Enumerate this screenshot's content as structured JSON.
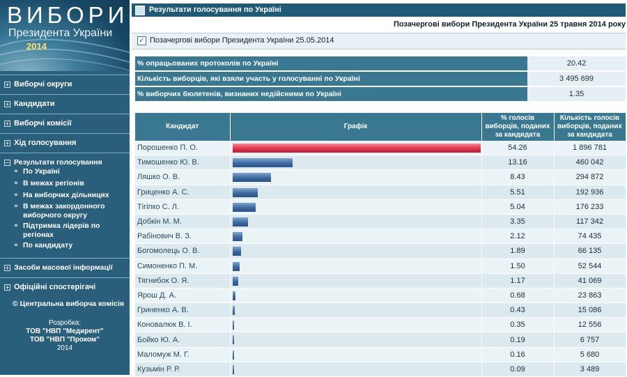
{
  "banner": {
    "big": "ВИБОРИ",
    "middle": "Президента України",
    "year": "2014"
  },
  "sidebar": {
    "items": [
      {
        "label": "Виборчі округи",
        "box": "+"
      },
      {
        "label": "Кандидати",
        "box": "+"
      },
      {
        "label": "Виборчі комісії",
        "box": "+"
      },
      {
        "label": "Хід голосування",
        "box": "+"
      },
      {
        "label": "Результати голосування",
        "box": "−"
      },
      {
        "label": "Засоби масової інформації",
        "box": "+"
      },
      {
        "label": "Офіційні спостерігачі",
        "box": "+"
      }
    ],
    "subitems": [
      "По Україні",
      "В межах регіонів",
      "На виборчих дільницях",
      "В межах закордонного виборчого округу",
      "Підтримка лідерів по регіонах",
      "По кандидату"
    ],
    "copyright": "© Центральна виборча комісія",
    "credits": {
      "title": "Розробка:",
      "line1": "ТОВ \"НВП \"Медирент\"",
      "line2": "ТОВ \"НВП \"Проком\"",
      "year": "2014"
    }
  },
  "main": {
    "header": "Результати голосування по Україні",
    "subtitle": "Позачергові вибори Президента України 25 травня 2014 року",
    "checkbox_label": "Позачергові вибори Президента України 25.05.2014",
    "stats": [
      {
        "label": "% опрацьованих протоколів по Україні",
        "value": "20.42"
      },
      {
        "label": "Кількість виборців, які взяли участь у голосуванні по Україні",
        "value": "3 495 699"
      },
      {
        "label": "% виборчих бюлетенів, визнаних недійсними по Україні",
        "value": "1.35"
      }
    ],
    "table": {
      "headers": [
        "Кандидат",
        "Графік",
        "% голосів виборців, поданих за кандидата",
        "Кількість голосів виборців, поданих за кандидата"
      ],
      "rows": [
        {
          "name": "Порошенко П. О.",
          "pct": "54.26",
          "votes": "1 896 781"
        },
        {
          "name": "Тимошенко Ю. В.",
          "pct": "13.16",
          "votes": "460 042"
        },
        {
          "name": "Ляшко О. В.",
          "pct": "8.43",
          "votes": "294 872"
        },
        {
          "name": "Гриценко А. С.",
          "pct": "5.51",
          "votes": "192 936"
        },
        {
          "name": "Тігіпко С. Л.",
          "pct": "5.04",
          "votes": "176 233"
        },
        {
          "name": "Добкін М. М.",
          "pct": "3.35",
          "votes": "117 342"
        },
        {
          "name": "Рабінович В. З.",
          "pct": "2.12",
          "votes": "74 435"
        },
        {
          "name": "Богомолець О. В.",
          "pct": "1.89",
          "votes": "66 135"
        },
        {
          "name": "Симоненко П. М.",
          "pct": "1.50",
          "votes": "52 544"
        },
        {
          "name": "Тягнибок О. Я.",
          "pct": "1.17",
          "votes": "41 069"
        },
        {
          "name": "Ярош Д. А.",
          "pct": "0.68",
          "votes": "23 863"
        },
        {
          "name": "Гриненко А. В.",
          "pct": "0.43",
          "votes": "15 086"
        },
        {
          "name": "Коновалюк В. І.",
          "pct": "0.35",
          "votes": "12 556"
        },
        {
          "name": "Бойко Ю. А.",
          "pct": "0.19",
          "votes": "6 757"
        },
        {
          "name": "Маломуж М. Г.",
          "pct": "0.16",
          "votes": "5 680"
        },
        {
          "name": "Кузьмін Р. Р.",
          "pct": "0.09",
          "votes": "3 489"
        }
      ]
    }
  },
  "colors": {
    "sidebar": "#2a5f7c",
    "header": "#1f5a77",
    "table_header": "#3a7891",
    "lead_bar": "#e0324b",
    "bar": "#3d6aa0"
  }
}
